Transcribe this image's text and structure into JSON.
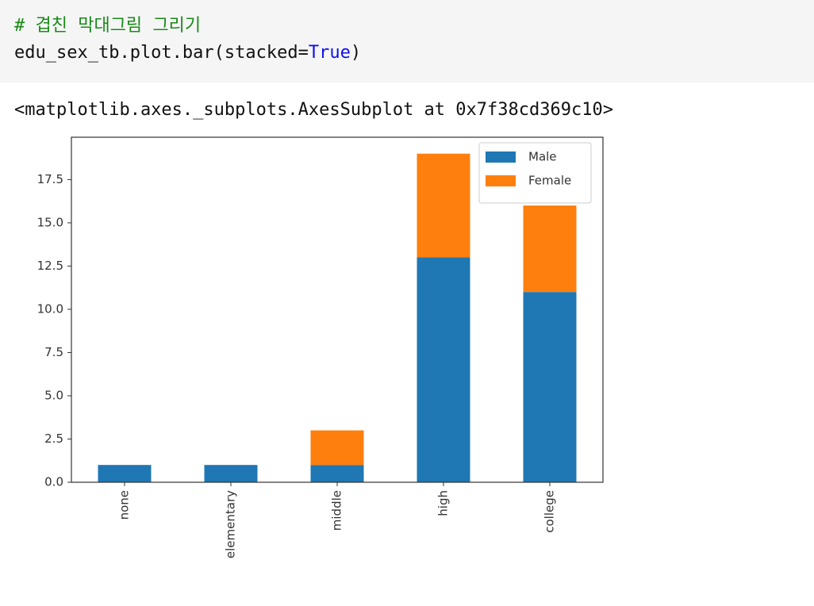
{
  "code": {
    "comment": "# 겹친 막대그림 그리기",
    "call": "edu_sex_tb.plot.bar(stacked=",
    "keyword": "True",
    "close": ")"
  },
  "output": "<matplotlib.axes._subplots.AxesSubplot at 0x7f38cd369c10>",
  "chart_data": {
    "type": "bar",
    "stacked": true,
    "categories": [
      "none",
      "elementary",
      "middle",
      "high",
      "college"
    ],
    "series": [
      {
        "name": "Male",
        "color": "#1f77b4",
        "values": [
          1,
          1,
          1,
          13,
          11
        ]
      },
      {
        "name": "Female",
        "color": "#ff7f0e",
        "values": [
          0,
          0,
          2,
          6,
          5
        ]
      }
    ],
    "ylim": [
      0,
      19.95
    ],
    "yticks": [
      {
        "value": 0,
        "label": "0.0"
      },
      2.5,
      {
        "value": 5,
        "label": "5.0"
      },
      7.5,
      {
        "value": 10,
        "label": "10.0"
      },
      12.5,
      {
        "value": 15,
        "label": "15.0"
      },
      17.5
    ],
    "legend": "upper right",
    "grid": false
  }
}
